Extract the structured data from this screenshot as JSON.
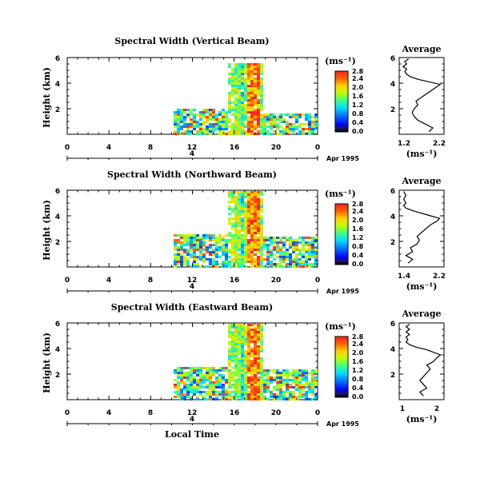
{
  "chart_data": [
    {
      "type": "heatmap",
      "title": "Spectral Width (Vertical Beam)",
      "ylabel": "Height (km)",
      "x_ticks": [
        "0",
        "4",
        "8",
        "12",
        "16",
        "20",
        "0"
      ],
      "y_ticks": [
        "2",
        "4",
        "6"
      ],
      "xlim": [
        0,
        24
      ],
      "ylim": [
        0,
        6
      ],
      "day_marker": "4",
      "date_label": "Apr 1995",
      "colorbar": {
        "unit": "(ms⁻¹)",
        "ticks": [
          "0.0",
          "0.4",
          "0.8",
          "1.2",
          "1.6",
          "2.0",
          "2.4",
          "2.8"
        ],
        "range": [
          0,
          2.8
        ]
      },
      "average": {
        "title": "Average",
        "xlabel": "(ms⁻¹)",
        "x_ticks": [
          "1.2",
          "2.2"
        ],
        "xlim": [
          1.1,
          2.3
        ],
        "y_ticks": [
          "2",
          "4",
          "6"
        ],
        "profile": [
          [
            1.9,
            0.2
          ],
          [
            2.0,
            0.5
          ],
          [
            1.8,
            0.8
          ],
          [
            1.6,
            1.1
          ],
          [
            1.5,
            1.4
          ],
          [
            1.45,
            1.7
          ],
          [
            1.5,
            2.0
          ],
          [
            1.6,
            2.3
          ],
          [
            1.55,
            2.6
          ],
          [
            1.7,
            2.9
          ],
          [
            1.8,
            3.1
          ],
          [
            1.9,
            3.3
          ],
          [
            2.0,
            3.5
          ],
          [
            2.1,
            3.7
          ],
          [
            2.2,
            3.9
          ],
          [
            1.9,
            4.1
          ],
          [
            1.6,
            4.3
          ],
          [
            1.4,
            4.5
          ],
          [
            1.3,
            4.7
          ],
          [
            1.25,
            4.9
          ],
          [
            1.3,
            5.1
          ],
          [
            1.2,
            5.3
          ],
          [
            1.3,
            5.5
          ],
          [
            1.25,
            5.7
          ],
          [
            1.35,
            5.9
          ]
        ]
      }
    },
    {
      "type": "heatmap",
      "title": "Spectral Width (Northward Beam)",
      "ylabel": "Height (km)",
      "x_ticks": [
        "0",
        "4",
        "8",
        "12",
        "16",
        "20",
        "0"
      ],
      "y_ticks": [
        "2",
        "4",
        "6"
      ],
      "xlim": [
        0,
        24
      ],
      "ylim": [
        0,
        6
      ],
      "day_marker": "4",
      "date_label": "Apr 1995",
      "colorbar": {
        "unit": "(ms⁻¹)",
        "ticks": [
          "0.0",
          "0.4",
          "0.8",
          "1.2",
          "1.6",
          "2.0",
          "2.4",
          "2.8"
        ],
        "range": [
          0,
          2.8
        ]
      },
      "average": {
        "title": "Average",
        "xlabel": "(ms⁻¹)",
        "x_ticks": [
          "1.4",
          "2.2"
        ],
        "xlim": [
          1.3,
          2.3
        ],
        "y_ticks": [
          "2",
          "4",
          "6"
        ],
        "profile": [
          [
            1.5,
            0.3
          ],
          [
            1.6,
            0.6
          ],
          [
            1.45,
            0.9
          ],
          [
            1.6,
            1.2
          ],
          [
            1.55,
            1.5
          ],
          [
            1.7,
            1.8
          ],
          [
            1.75,
            2.1
          ],
          [
            1.7,
            2.4
          ],
          [
            1.8,
            2.7
          ],
          [
            1.9,
            3.0
          ],
          [
            2.0,
            3.3
          ],
          [
            2.15,
            3.6
          ],
          [
            2.2,
            3.8
          ],
          [
            2.0,
            4.0
          ],
          [
            1.8,
            4.2
          ],
          [
            1.6,
            4.4
          ],
          [
            1.45,
            4.6
          ],
          [
            1.4,
            4.8
          ],
          [
            1.45,
            5.0
          ],
          [
            1.4,
            5.3
          ],
          [
            1.45,
            5.6
          ],
          [
            1.4,
            5.9
          ]
        ]
      }
    },
    {
      "type": "heatmap",
      "title": "Spectral Width (Eastward Beam)",
      "ylabel": "Height (km)",
      "xlabel": "Local Time",
      "x_ticks": [
        "0",
        "4",
        "8",
        "12",
        "16",
        "20",
        "0"
      ],
      "y_ticks": [
        "2",
        "4",
        "6"
      ],
      "xlim": [
        0,
        24
      ],
      "ylim": [
        0,
        6
      ],
      "day_marker": "4",
      "date_label": "Apr 1995",
      "colorbar": {
        "unit": "(ms⁻¹)",
        "ticks": [
          "0.0",
          "0.4",
          "0.8",
          "1.2",
          "1.6",
          "2.0",
          "2.4",
          "2.8"
        ],
        "range": [
          0,
          2.8
        ]
      },
      "average": {
        "title": "Average",
        "xlabel": "(ms⁻¹)",
        "x_ticks": [
          "1",
          "2"
        ],
        "xlim": [
          0.9,
          2.2
        ],
        "y_ticks": [
          "2",
          "4",
          "6"
        ],
        "profile": [
          [
            1.6,
            0.3
          ],
          [
            1.5,
            0.6
          ],
          [
            1.7,
            0.9
          ],
          [
            1.6,
            1.2
          ],
          [
            1.5,
            1.5
          ],
          [
            1.6,
            1.8
          ],
          [
            1.7,
            2.1
          ],
          [
            1.8,
            2.4
          ],
          [
            1.7,
            2.7
          ],
          [
            1.9,
            3.0
          ],
          [
            2.0,
            3.3
          ],
          [
            2.1,
            3.5
          ],
          [
            1.9,
            3.7
          ],
          [
            1.7,
            3.9
          ],
          [
            1.4,
            4.1
          ],
          [
            1.2,
            4.3
          ],
          [
            1.1,
            4.5
          ],
          [
            1.15,
            4.7
          ],
          [
            1.1,
            4.9
          ],
          [
            1.2,
            5.1
          ],
          [
            1.1,
            5.3
          ],
          [
            1.2,
            5.5
          ],
          [
            1.1,
            5.7
          ],
          [
            1.2,
            5.9
          ]
        ]
      }
    }
  ]
}
